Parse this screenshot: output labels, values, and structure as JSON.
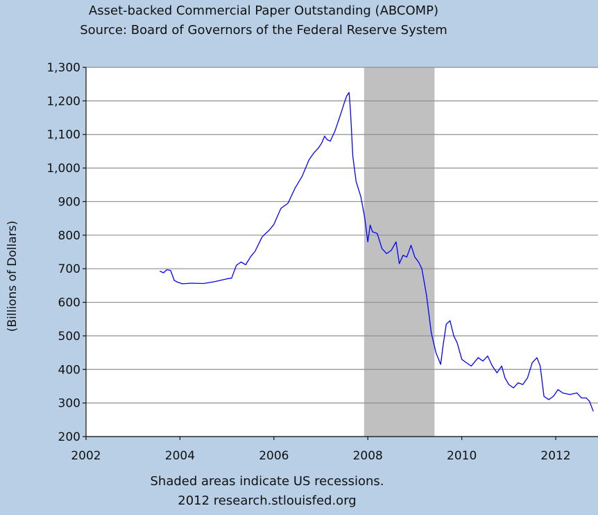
{
  "chart_data": {
    "type": "line",
    "title": "Asset-backed Commercial Paper Outstanding (ABCOMP)",
    "subtitle": "Source: Board of Governors of the Federal Reserve System",
    "ylabel": "(Billions of Dollars)",
    "xlabel": "",
    "ylim": [
      200,
      1300
    ],
    "xlim": [
      2002,
      2012.9
    ],
    "grid": true,
    "y_ticks": [
      200,
      300,
      400,
      500,
      600,
      700,
      800,
      900,
      1000,
      1100,
      1200,
      1300
    ],
    "y_tick_labels": [
      "200",
      "300",
      "400",
      "500",
      "600",
      "700",
      "800",
      "900",
      "1,000",
      "1,100",
      "1,200",
      "1,300"
    ],
    "x_ticks": [
      2002,
      2004,
      2006,
      2008,
      2010,
      2012
    ],
    "x_tick_labels": [
      "2002",
      "2004",
      "2006",
      "2008",
      "2010",
      "2012"
    ],
    "recession_shading": [
      {
        "start": 2007.92,
        "end": 2009.42
      }
    ],
    "series": [
      {
        "name": "ABCOMP",
        "color": "#0000ff",
        "x": [
          2003.57,
          2003.65,
          2003.72,
          2003.8,
          2003.88,
          2003.95,
          2004.05,
          2004.25,
          2004.5,
          2004.75,
          2005.0,
          2005.1,
          2005.2,
          2005.3,
          2005.4,
          2005.5,
          2005.6,
          2005.75,
          2005.9,
          2006.0,
          2006.15,
          2006.3,
          2006.45,
          2006.6,
          2006.75,
          2006.85,
          2006.95,
          2007.02,
          2007.08,
          2007.13,
          2007.2,
          2007.3,
          2007.42,
          2007.5,
          2007.55,
          2007.6,
          2007.63,
          2007.68,
          2007.75,
          2007.85,
          2007.93,
          2008.0,
          2008.05,
          2008.1,
          2008.2,
          2008.3,
          2008.4,
          2008.5,
          2008.6,
          2008.67,
          2008.75,
          2008.83,
          2008.92,
          2009.0,
          2009.08,
          2009.15,
          2009.25,
          2009.35,
          2009.45,
          2009.55,
          2009.6,
          2009.67,
          2009.75,
          2009.83,
          2009.9,
          2010.0,
          2010.1,
          2010.2,
          2010.35,
          2010.45,
          2010.55,
          2010.65,
          2010.75,
          2010.85,
          2010.92,
          2011.0,
          2011.1,
          2011.2,
          2011.3,
          2011.4,
          2011.5,
          2011.6,
          2011.67,
          2011.75,
          2011.85,
          2011.95,
          2012.05,
          2012.15,
          2012.3,
          2012.45,
          2012.55,
          2012.65,
          2012.72,
          2012.8
        ],
        "values": [
          693,
          688,
          697,
          695,
          665,
          660,
          655,
          657,
          656,
          662,
          670,
          672,
          710,
          720,
          712,
          735,
          752,
          795,
          815,
          832,
          880,
          895,
          940,
          975,
          1025,
          1045,
          1060,
          1075,
          1095,
          1085,
          1080,
          1110,
          1160,
          1195,
          1215,
          1225,
          1170,
          1035,
          960,
          915,
          855,
          780,
          830,
          810,
          805,
          760,
          745,
          755,
          780,
          715,
          740,
          735,
          770,
          735,
          720,
          700,
          620,
          510,
          450,
          415,
          470,
          535,
          545,
          500,
          480,
          430,
          420,
          410,
          435,
          425,
          440,
          410,
          390,
          410,
          375,
          355,
          345,
          360,
          355,
          375,
          420,
          435,
          410,
          320,
          310,
          320,
          340,
          330,
          325,
          330,
          315,
          315,
          305,
          275
        ]
      }
    ],
    "footer_note": "Shaded areas indicate US recessions.",
    "footer_credit": "2012 research.stlouisfed.org"
  }
}
